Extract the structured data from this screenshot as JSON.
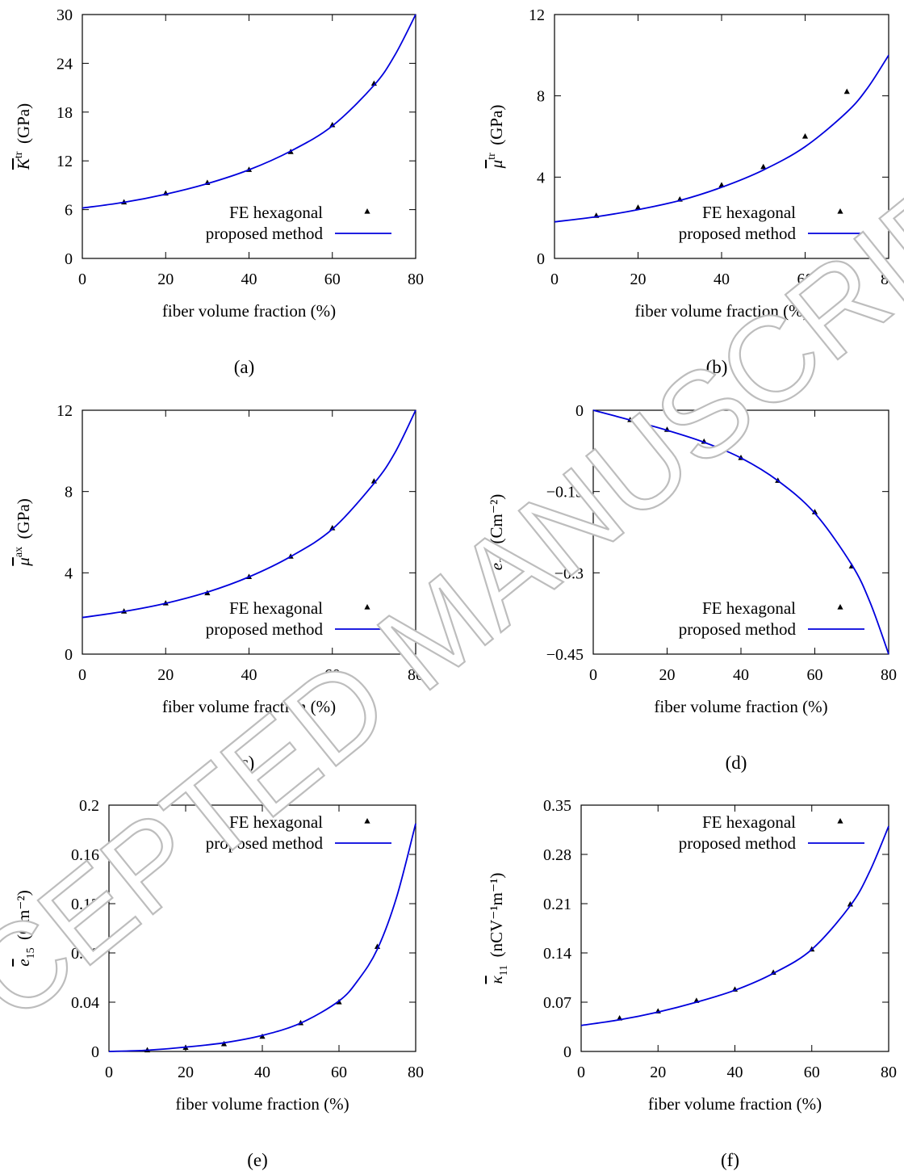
{
  "watermark": "ACCEPTED MANUSCRIPT",
  "colors": {
    "curve": "#0000dd",
    "marker": "#000000",
    "axis": "#000000",
    "watermark": "#bdbdbd"
  },
  "chart_data": [
    {
      "id": "a",
      "caption": "(a)",
      "type": "line",
      "xlabel": "fiber volume fraction (%)",
      "ylabel": {
        "sym": "K",
        "bar": "overline",
        "sup": "tr",
        "sub": "",
        "unit": "(GPa)"
      },
      "xlim": [
        0,
        80
      ],
      "ylim": [
        0,
        30
      ],
      "xticks": [
        "0",
        "20",
        "40",
        "60",
        "80"
      ],
      "yticks": [
        "0",
        "6",
        "12",
        "18",
        "24",
        "30"
      ],
      "legend": {
        "position": "bottom-right",
        "entries": [
          "FE hexagonal",
          "proposed method"
        ]
      },
      "series": [
        {
          "name": "FE hexagonal",
          "kind": "scatter",
          "x": [
            10,
            20,
            30,
            40,
            50,
            60,
            70
          ],
          "y": [
            6.9,
            8.0,
            9.3,
            10.9,
            13.1,
            16.4,
            21.5
          ]
        },
        {
          "name": "proposed method",
          "kind": "line",
          "x": [
            0,
            10,
            20,
            30,
            40,
            50,
            60,
            70,
            75,
            80
          ],
          "y": [
            6.2,
            6.9,
            7.9,
            9.2,
            10.9,
            13.2,
            16.3,
            21.3,
            25.0,
            30.0
          ]
        }
      ]
    },
    {
      "id": "b",
      "caption": "(b)",
      "type": "line",
      "xlabel": "fiber volume fraction (%)",
      "ylabel": {
        "sym": "μ",
        "bar": "overline",
        "sup": "tr",
        "sub": "",
        "unit": "(GPa)"
      },
      "xlim": [
        0,
        80
      ],
      "ylim": [
        0,
        12
      ],
      "xticks": [
        "0",
        "20",
        "40",
        "60",
        "80"
      ],
      "yticks": [
        "0",
        "4",
        "8",
        "12"
      ],
      "legend": {
        "position": "bottom-right",
        "entries": [
          "FE hexagonal",
          "proposed method"
        ]
      },
      "series": [
        {
          "name": "FE hexagonal",
          "kind": "scatter",
          "x": [
            10,
            20,
            30,
            40,
            50,
            60,
            70
          ],
          "y": [
            2.1,
            2.5,
            2.9,
            3.6,
            4.5,
            6.0,
            8.2
          ]
        },
        {
          "name": "proposed method",
          "kind": "line",
          "x": [
            0,
            10,
            20,
            30,
            40,
            50,
            60,
            70,
            75,
            80
          ],
          "y": [
            1.8,
            2.05,
            2.4,
            2.85,
            3.5,
            4.35,
            5.5,
            7.2,
            8.4,
            10.0
          ]
        }
      ]
    },
    {
      "id": "c",
      "caption": "(c)",
      "type": "line",
      "xlabel": "fiber volume fraction (%)",
      "ylabel": {
        "sym": "μ",
        "bar": "overline",
        "sup": "ax",
        "sub": "",
        "unit": "(GPa)"
      },
      "xlim": [
        0,
        80
      ],
      "ylim": [
        0,
        12
      ],
      "xticks": [
        "0",
        "20",
        "40",
        "60",
        "80"
      ],
      "yticks": [
        "0",
        "4",
        "8",
        "12"
      ],
      "legend": {
        "position": "bottom-right",
        "entries": [
          "FE hexagonal",
          "proposed method"
        ]
      },
      "series": [
        {
          "name": "FE hexagonal",
          "kind": "scatter",
          "x": [
            10,
            20,
            30,
            40,
            50,
            60,
            70
          ],
          "y": [
            2.1,
            2.5,
            3.0,
            3.8,
            4.8,
            6.2,
            8.5
          ]
        },
        {
          "name": "proposed method",
          "kind": "line",
          "x": [
            0,
            10,
            20,
            30,
            40,
            50,
            60,
            70,
            75,
            80
          ],
          "y": [
            1.8,
            2.1,
            2.5,
            3.05,
            3.8,
            4.8,
            6.15,
            8.4,
            9.9,
            12.0
          ]
        }
      ]
    },
    {
      "id": "d",
      "caption": "(d)",
      "type": "line",
      "xlabel": "fiber volume fraction (%)",
      "ylabel": {
        "sym": "e",
        "bar": "bar",
        "sup": "",
        "sub": "31",
        "unit": "(Cm⁻²)"
      },
      "xlim": [
        0,
        80
      ],
      "ylim": [
        -0.45,
        0
      ],
      "xticks": [
        "0",
        "20",
        "40",
        "60",
        "80"
      ],
      "yticks": [
        "-0.45",
        "-0.3",
        "-0.15",
        "0"
      ],
      "legend": {
        "position": "bottom-right",
        "entries": [
          "FE hexagonal",
          "proposed method"
        ]
      },
      "series": [
        {
          "name": "FE hexagonal",
          "kind": "scatter",
          "x": [
            10,
            20,
            30,
            40,
            50,
            60,
            70
          ],
          "y": [
            -0.018,
            -0.036,
            -0.058,
            -0.088,
            -0.13,
            -0.188,
            -0.288
          ]
        },
        {
          "name": "proposed method",
          "kind": "line",
          "x": [
            0,
            10,
            20,
            30,
            40,
            50,
            60,
            70,
            75,
            80
          ],
          "y": [
            0,
            -0.018,
            -0.037,
            -0.059,
            -0.088,
            -0.13,
            -0.19,
            -0.285,
            -0.355,
            -0.45
          ]
        }
      ]
    },
    {
      "id": "e",
      "caption": "(e)",
      "type": "line",
      "xlabel": "fiber volume fraction (%)",
      "ylabel": {
        "sym": "e",
        "bar": "bar",
        "sup": "",
        "sub": "15",
        "unit": "(Cm⁻²)"
      },
      "xlim": [
        0,
        80
      ],
      "ylim": [
        0,
        0.2
      ],
      "xticks": [
        "0",
        "20",
        "40",
        "60",
        "80"
      ],
      "yticks": [
        "0",
        "0.04",
        "0.08",
        "0.12",
        "0.16",
        "0.2"
      ],
      "legend": {
        "position": "top-right",
        "entries": [
          "FE hexagonal",
          "proposed method"
        ]
      },
      "series": [
        {
          "name": "FE hexagonal",
          "kind": "scatter",
          "x": [
            10,
            20,
            30,
            40,
            50,
            60,
            70
          ],
          "y": [
            0.001,
            0.003,
            0.006,
            0.012,
            0.023,
            0.04,
            0.085
          ]
        },
        {
          "name": "proposed method",
          "kind": "line",
          "x": [
            0,
            10,
            20,
            30,
            40,
            50,
            60,
            65,
            70,
            75,
            80
          ],
          "y": [
            0,
            0.001,
            0.0035,
            0.007,
            0.013,
            0.023,
            0.041,
            0.058,
            0.083,
            0.125,
            0.185
          ]
        }
      ]
    },
    {
      "id": "f",
      "caption": "(f)",
      "type": "line",
      "xlabel": "fiber volume fraction (%)",
      "ylabel": {
        "sym": "κ",
        "bar": "bar",
        "sup": "",
        "sub": "11",
        "unit": "(nCV⁻¹m⁻¹)"
      },
      "xlim": [
        0,
        80
      ],
      "ylim": [
        0,
        0.35
      ],
      "xticks": [
        "0",
        "20",
        "40",
        "60",
        "80"
      ],
      "yticks": [
        "0",
        "0.07",
        "0.14",
        "0.21",
        "0.28",
        "0.35"
      ],
      "legend": {
        "position": "top-right",
        "entries": [
          "FE hexagonal",
          "proposed method"
        ]
      },
      "series": [
        {
          "name": "FE hexagonal",
          "kind": "scatter",
          "x": [
            10,
            20,
            30,
            40,
            50,
            60,
            70
          ],
          "y": [
            0.047,
            0.057,
            0.072,
            0.088,
            0.112,
            0.145,
            0.209
          ]
        },
        {
          "name": "proposed method",
          "kind": "line",
          "x": [
            0,
            10,
            20,
            30,
            40,
            50,
            60,
            70,
            75,
            80
          ],
          "y": [
            0.037,
            0.045,
            0.056,
            0.07,
            0.087,
            0.111,
            0.145,
            0.207,
            0.255,
            0.32
          ]
        }
      ]
    }
  ]
}
